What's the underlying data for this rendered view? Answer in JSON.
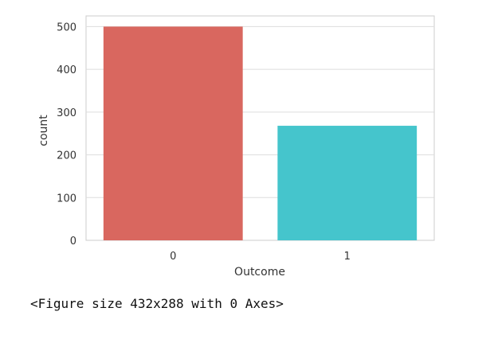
{
  "chart_data": {
    "type": "bar",
    "categories": [
      "0",
      "1"
    ],
    "values": [
      500,
      268
    ],
    "title": "",
    "xlabel": "Outcome",
    "ylabel": "count",
    "ylim": [
      0,
      525
    ],
    "yticks": [
      0,
      100,
      200,
      300,
      400,
      500
    ],
    "grid": true,
    "colors": [
      "#d9675f",
      "#45c5cc"
    ]
  },
  "figure_note": "<Figure size 432x288 with 0 Axes>"
}
